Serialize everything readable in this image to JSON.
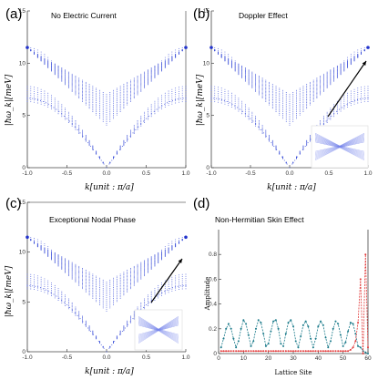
{
  "chart_data": [
    {
      "type": "scatter",
      "panel": "(a)",
      "title": "No Electric Current",
      "xlabel": "k[unit : π/a]",
      "ylabel": "|ħω_k|[meV]",
      "xlim": [
        -1.0,
        1.0
      ],
      "ylim": [
        0,
        15
      ],
      "x_ticks": [
        "-1.0",
        "-0.5",
        "0.0",
        "0.5",
        "1.0"
      ],
      "y_ticks": [
        "0",
        "5",
        "10",
        "15"
      ],
      "band_top_meV": 11.5,
      "inset": false
    },
    {
      "type": "scatter",
      "panel": "(b)",
      "title": "Doppler Effect",
      "xlabel": "k[unit : π/a]",
      "ylabel": "|ħω_k|[meV]",
      "xlim": [
        -1.0,
        1.0
      ],
      "ylim": [
        0,
        15
      ],
      "x_ticks": [
        "-1.0",
        "-0.5",
        "0.0",
        "0.5",
        "1.0"
      ],
      "y_ticks": [
        "0",
        "5",
        "10",
        "15"
      ],
      "band_top_meV": 11.5,
      "inset": true
    },
    {
      "type": "scatter",
      "panel": "(c)",
      "title": "Exceptional Nodal Phase",
      "xlabel": "k[unit : π/a]",
      "ylabel": "|ħω_k|[meV]",
      "xlim": [
        -1.0,
        1.0
      ],
      "ylim": [
        0,
        15
      ],
      "x_ticks": [
        "-1.0",
        "-0.5",
        "0.0",
        "0.5",
        "1.0"
      ],
      "y_ticks": [
        "0",
        "5",
        "10",
        "15"
      ],
      "band_top_meV": 11.5,
      "inset": true
    },
    {
      "type": "line",
      "panel": "(d)",
      "title": "Non-Hermitian Skin Effect",
      "xlabel": "Lattice Site",
      "ylabel": "Amplitude",
      "xlim": [
        0,
        60
      ],
      "ylim": [
        0,
        1.0
      ],
      "x_ticks": [
        "0",
        "10",
        "20",
        "30",
        "40",
        "50",
        "60"
      ],
      "y_ticks": [
        "0",
        "0.2",
        "0.4",
        "0.6",
        "0.8"
      ],
      "series": [
        {
          "color": "#1a7a8a",
          "x": [
            1,
            2,
            3,
            4,
            5,
            6,
            7,
            8,
            9,
            10,
            11,
            12,
            13,
            14,
            15,
            16,
            17,
            18,
            19,
            20,
            21,
            22,
            23,
            24,
            25,
            26,
            27,
            28,
            29,
            30,
            31,
            32,
            33,
            34,
            35,
            36,
            37,
            38,
            39,
            40,
            41,
            42,
            43,
            44,
            45,
            46,
            47,
            48,
            49,
            50,
            51,
            52,
            53,
            54,
            55,
            56,
            57,
            58,
            59,
            60
          ],
          "y": [
            0.05,
            0.12,
            0.2,
            0.24,
            0.2,
            0.12,
            0.05,
            0.1,
            0.2,
            0.27,
            0.24,
            0.15,
            0.06,
            0.1,
            0.2,
            0.27,
            0.25,
            0.16,
            0.06,
            0.08,
            0.18,
            0.26,
            0.27,
            0.2,
            0.08,
            0.06,
            0.16,
            0.25,
            0.27,
            0.22,
            0.1,
            0.05,
            0.14,
            0.23,
            0.26,
            0.22,
            0.12,
            0.05,
            0.12,
            0.22,
            0.26,
            0.23,
            0.13,
            0.05,
            0.1,
            0.2,
            0.26,
            0.24,
            0.15,
            0.06,
            0.09,
            0.18,
            0.25,
            0.24,
            0.16,
            0.06,
            0.05,
            0.02,
            0.01,
            0.0
          ]
        },
        {
          "color": "#e23a3a",
          "x": [
            1,
            2,
            3,
            4,
            5,
            6,
            7,
            8,
            9,
            10,
            11,
            12,
            13,
            14,
            15,
            16,
            17,
            18,
            19,
            20,
            21,
            22,
            23,
            24,
            25,
            26,
            27,
            28,
            29,
            30,
            31,
            32,
            33,
            34,
            35,
            36,
            37,
            38,
            39,
            40,
            41,
            42,
            43,
            44,
            45,
            46,
            47,
            48,
            49,
            50,
            51,
            52,
            53,
            54,
            55,
            56,
            57,
            58,
            59,
            60
          ],
          "y": [
            0.02,
            0.02,
            0.02,
            0.02,
            0.02,
            0.02,
            0.02,
            0.02,
            0.02,
            0.02,
            0.02,
            0.02,
            0.02,
            0.02,
            0.02,
            0.02,
            0.02,
            0.02,
            0.02,
            0.02,
            0.02,
            0.02,
            0.02,
            0.02,
            0.02,
            0.02,
            0.02,
            0.02,
            0.02,
            0.02,
            0.02,
            0.02,
            0.02,
            0.02,
            0.02,
            0.02,
            0.02,
            0.02,
            0.02,
            0.02,
            0.02,
            0.02,
            0.02,
            0.02,
            0.02,
            0.02,
            0.02,
            0.02,
            0.02,
            0.02,
            0.02,
            0.02,
            0.03,
            0.05,
            0.1,
            0.25,
            0.6,
            0.0,
            0.8,
            0.05
          ]
        }
      ]
    }
  ]
}
